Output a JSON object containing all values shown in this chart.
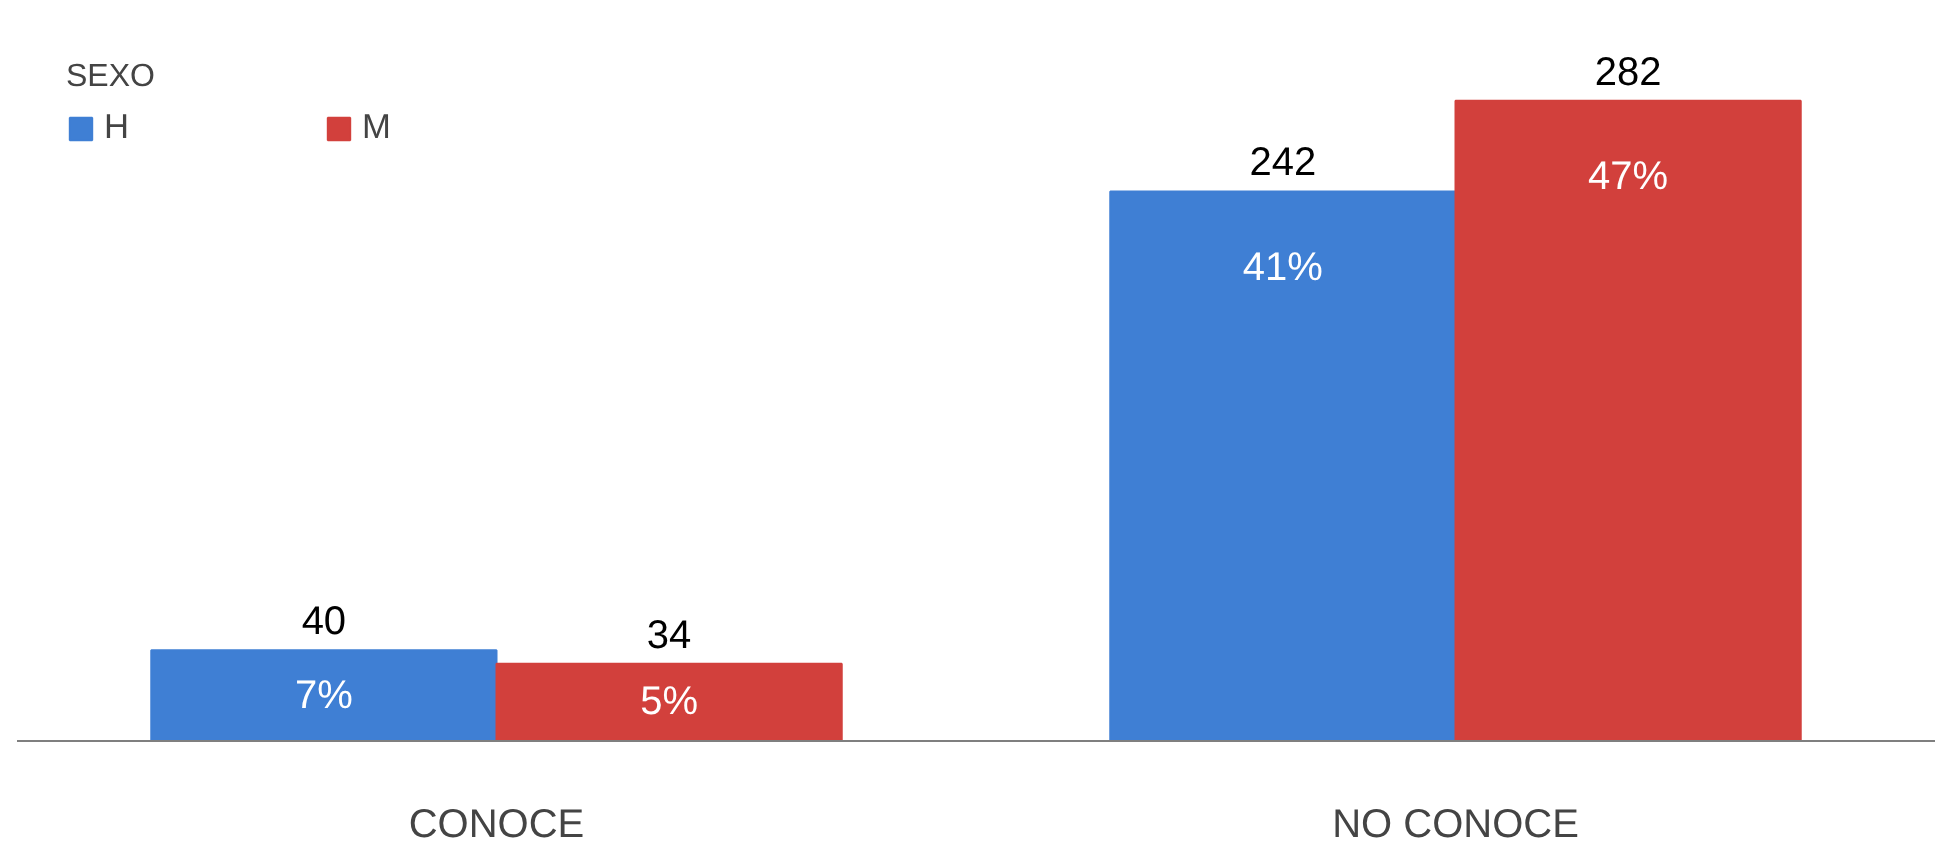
{
  "chart_data": {
    "type": "bar",
    "categories": [
      "CONOCE",
      "NO CONOCE"
    ],
    "series": [
      {
        "name": "H",
        "color": "#3f7fd4",
        "values": [
          40,
          242
        ]
      },
      {
        "name": "M",
        "color": "#d2403c",
        "values": [
          34,
          282
        ]
      }
    ],
    "legend_title": "SEXO",
    "legend": "top left",
    "data_labels": true,
    "grid": false,
    "annotations": [
      "7%",
      "41%",
      "5%",
      "47%"
    ]
  }
}
